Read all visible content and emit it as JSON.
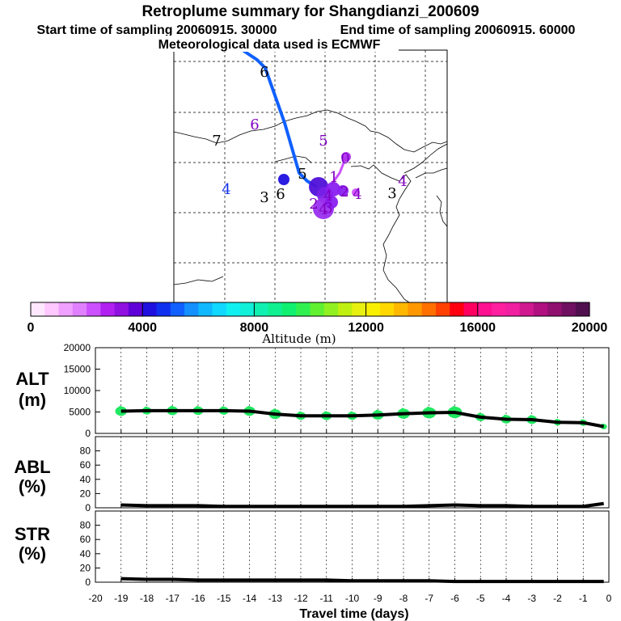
{
  "title": "Retroplume summary for Shangdianzi_200609",
  "start_label": "Start time of sampling 20060915. 30000",
  "end_label": "End time of sampling 20060915. 60000",
  "met_label": "Meteorological data used is ECMWF",
  "colorbar": {
    "label": "Altitude (m)",
    "ticks": [
      "0",
      "4000",
      "8000",
      "12000",
      "16000",
      "20000"
    ],
    "colors": [
      "#ffe8ff",
      "#ffc8ff",
      "#f0a0ff",
      "#e080ff",
      "#cc50ff",
      "#b020f0",
      "#9010e0",
      "#6000d8",
      "#2010e0",
      "#1030f0",
      "#1060ff",
      "#1490ff",
      "#10b8ff",
      "#10d8ff",
      "#10f0f0",
      "#10f0d8",
      "#10f0b0",
      "#10f090",
      "#10f070",
      "#30f050",
      "#60f030",
      "#90f020",
      "#c0f010",
      "#e8f010",
      "#f8f000",
      "#ffd800",
      "#ffb800",
      "#ff9800",
      "#ff7000",
      "#ff4000",
      "#ff0010",
      "#ff0060",
      "#ff1090",
      "#ff20a0",
      "#f020a0",
      "#d01890",
      "#b01080",
      "#901070",
      "#701060",
      "#501050"
    ]
  },
  "map": {
    "trajectory_color": "#1060ff",
    "day_labels": [
      {
        "text": "6",
        "color": "#000000"
      },
      {
        "text": "7",
        "color": "#000000"
      },
      {
        "text": "6",
        "color": "#8000c0"
      },
      {
        "text": "5",
        "color": "#8000c0"
      },
      {
        "text": "0",
        "color": "#8000c0"
      },
      {
        "text": "4",
        "color": "#1030f0"
      },
      {
        "text": "3",
        "color": "#000000"
      },
      {
        "text": "6",
        "color": "#000000"
      },
      {
        "text": "5",
        "color": "#000000"
      },
      {
        "text": "1",
        "color": "#8000c0"
      },
      {
        "text": "4",
        "color": "#8000c0"
      },
      {
        "text": "2",
        "color": "#8000c0"
      },
      {
        "text": "4",
        "color": "#8000c0"
      },
      {
        "text": "2",
        "color": "#8000c0"
      },
      {
        "text": "3",
        "color": "#8000c0"
      },
      {
        "text": "4",
        "color": "#8000c0"
      },
      {
        "text": "3",
        "color": "#000000"
      },
      {
        "text": "4",
        "color": "#8000c0"
      }
    ]
  },
  "chart_data": [
    {
      "type": "line",
      "panel": "ALT",
      "ylabel_line1": "ALT",
      "ylabel_line2": "(m)",
      "xlabel": "Travel time (days)",
      "xlim": [
        -20,
        0
      ],
      "ylim": [
        0,
        20000
      ],
      "yticks": [
        0,
        5000,
        10000,
        15000,
        20000
      ],
      "x": [
        -19,
        -18,
        -17,
        -16,
        -15,
        -14,
        -13,
        -12,
        -11,
        -10,
        -9,
        -8,
        -7,
        -6,
        -5,
        -4,
        -3,
        -2,
        -1,
        -0.2
      ],
      "values": [
        5200,
        5300,
        5300,
        5300,
        5300,
        5200,
        4500,
        4100,
        4100,
        4100,
        4300,
        4600,
        4800,
        4900,
        3800,
        3300,
        3200,
        2600,
        2500,
        1600
      ],
      "spread": [
        1400,
        1000,
        1300,
        1200,
        1100,
        1400,
        1500,
        1100,
        1200,
        1100,
        1400,
        1600,
        1800,
        1900,
        1100,
        1200,
        1200,
        700,
        700,
        500
      ]
    },
    {
      "type": "line",
      "panel": "ABL",
      "ylabel_line1": "ABL",
      "ylabel_line2": "(%)",
      "xlim": [
        -20,
        0
      ],
      "ylim": [
        0,
        100
      ],
      "yticks": [
        0,
        20,
        40,
        60,
        80
      ],
      "x": [
        -19,
        -18,
        -17,
        -16,
        -15,
        -14,
        -13,
        -12,
        -11,
        -10,
        -9,
        -8,
        -7,
        -6,
        -5,
        -4,
        -3,
        -2,
        -1,
        -0.2
      ],
      "values": [
        4,
        3,
        3,
        3,
        2,
        2,
        2,
        2,
        2,
        2,
        2,
        2,
        3,
        4,
        3,
        3,
        2,
        2,
        2,
        6
      ]
    },
    {
      "type": "line",
      "panel": "STR",
      "ylabel_line1": "STR",
      "ylabel_line2": "(%)",
      "xlim": [
        -20,
        0
      ],
      "ylim": [
        0,
        100
      ],
      "yticks": [
        0,
        20,
        40,
        60,
        80
      ],
      "x": [
        -19,
        -18,
        -17,
        -16,
        -15,
        -14,
        -13,
        -12,
        -11,
        -10,
        -9,
        -8,
        -7,
        -6,
        -5,
        -4,
        -3,
        -2,
        -1,
        -0.2
      ],
      "values": [
        5,
        4,
        4,
        3,
        3,
        3,
        3,
        3,
        3,
        2,
        2,
        2,
        2,
        1,
        1,
        1,
        1,
        1,
        1,
        1
      ]
    }
  ],
  "xticks": [
    "-20",
    "-19",
    "-18",
    "-17",
    "-16",
    "-15",
    "-14",
    "-13",
    "-12",
    "-11",
    "-10",
    "-9",
    "-8",
    "-7",
    "-6",
    "-5",
    "-4",
    "-3",
    "-2",
    "-1",
    "0"
  ]
}
